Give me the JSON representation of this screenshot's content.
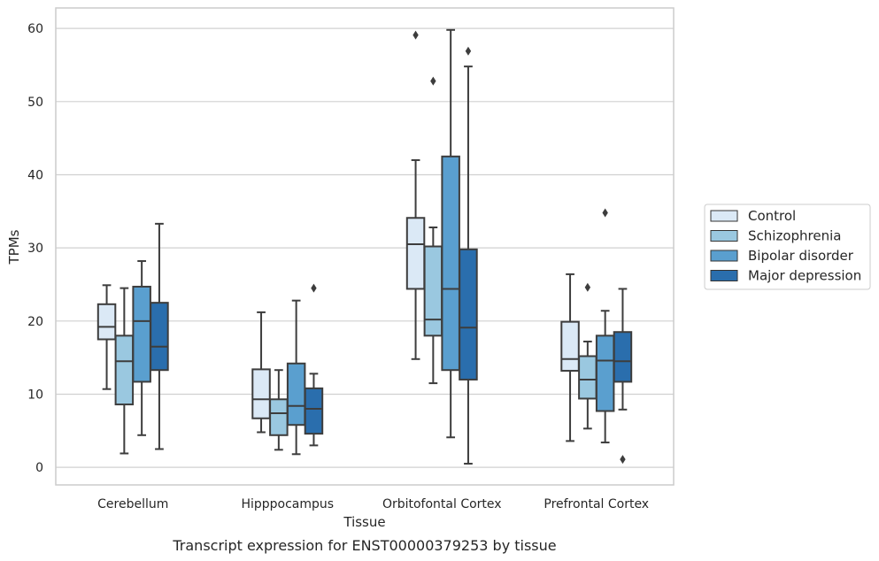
{
  "chart_data": {
    "type": "box",
    "caption": "Transcript expression for ENST00000379253 by tissue",
    "xlabel": "Tissue",
    "ylabel": "TPMs",
    "ylim": [
      -2.4,
      62.8
    ],
    "yticks": [
      0,
      10,
      20,
      30,
      40,
      50,
      60
    ],
    "grid": "horizontal",
    "legend_position": "right",
    "categories": [
      "Cerebellum",
      "Hipppocampus",
      "Orbitofontal Cortex",
      "Prefrontal Cortex"
    ],
    "series": [
      {
        "name": "Control",
        "color": "#dbe9f6",
        "boxes": [
          {
            "whislo": 10.7,
            "q1": 17.5,
            "med": 19.2,
            "q3": 22.3,
            "whishi": 24.9,
            "fliers": []
          },
          {
            "whislo": 4.8,
            "q1": 6.7,
            "med": 9.3,
            "q3": 13.4,
            "whishi": 21.2,
            "fliers": []
          },
          {
            "whislo": 14.8,
            "q1": 24.4,
            "med": 30.5,
            "q3": 34.1,
            "whishi": 42.0,
            "fliers": [
              59.1
            ]
          },
          {
            "whislo": 3.6,
            "q1": 13.2,
            "med": 14.8,
            "q3": 19.9,
            "whishi": 26.4,
            "fliers": []
          }
        ]
      },
      {
        "name": "Schizophrenia",
        "color": "#9ac8e0",
        "boxes": [
          {
            "whislo": 1.9,
            "q1": 8.6,
            "med": 14.5,
            "q3": 18.0,
            "whishi": 24.5,
            "fliers": []
          },
          {
            "whislo": 2.4,
            "q1": 4.4,
            "med": 7.4,
            "q3": 9.3,
            "whishi": 13.3,
            "fliers": []
          },
          {
            "whislo": 11.5,
            "q1": 18.0,
            "med": 20.2,
            "q3": 30.2,
            "whishi": 32.8,
            "fliers": [
              52.8
            ]
          },
          {
            "whislo": 5.3,
            "q1": 9.4,
            "med": 12.0,
            "q3": 15.2,
            "whishi": 17.2,
            "fliers": [
              24.6
            ]
          }
        ]
      },
      {
        "name": "Bipolar disorder",
        "color": "#5a9fcf",
        "boxes": [
          {
            "whislo": 4.4,
            "q1": 11.7,
            "med": 20.0,
            "q3": 24.7,
            "whishi": 28.2,
            "fliers": []
          },
          {
            "whislo": 1.8,
            "q1": 5.8,
            "med": 8.4,
            "q3": 14.2,
            "whishi": 22.8,
            "fliers": []
          },
          {
            "whislo": 4.1,
            "q1": 13.3,
            "med": 24.4,
            "q3": 42.5,
            "whishi": 59.8,
            "fliers": []
          },
          {
            "whislo": 3.4,
            "q1": 7.7,
            "med": 14.6,
            "q3": 18.0,
            "whishi": 21.4,
            "fliers": [
              34.8
            ]
          }
        ]
      },
      {
        "name": "Major depression",
        "color": "#2a6ead",
        "boxes": [
          {
            "whislo": 2.5,
            "q1": 13.3,
            "med": 16.5,
            "q3": 22.5,
            "whishi": 33.3,
            "fliers": []
          },
          {
            "whislo": 3.0,
            "q1": 4.6,
            "med": 8.0,
            "q3": 10.8,
            "whishi": 12.8,
            "fliers": [
              24.5
            ]
          },
          {
            "whislo": 0.5,
            "q1": 12.0,
            "med": 19.1,
            "q3": 29.8,
            "whishi": 54.8,
            "fliers": [
              56.9
            ]
          },
          {
            "whislo": 7.9,
            "q1": 11.7,
            "med": 14.5,
            "q3": 18.5,
            "whishi": 24.4,
            "fliers": [
              1.1
            ]
          }
        ]
      }
    ]
  }
}
